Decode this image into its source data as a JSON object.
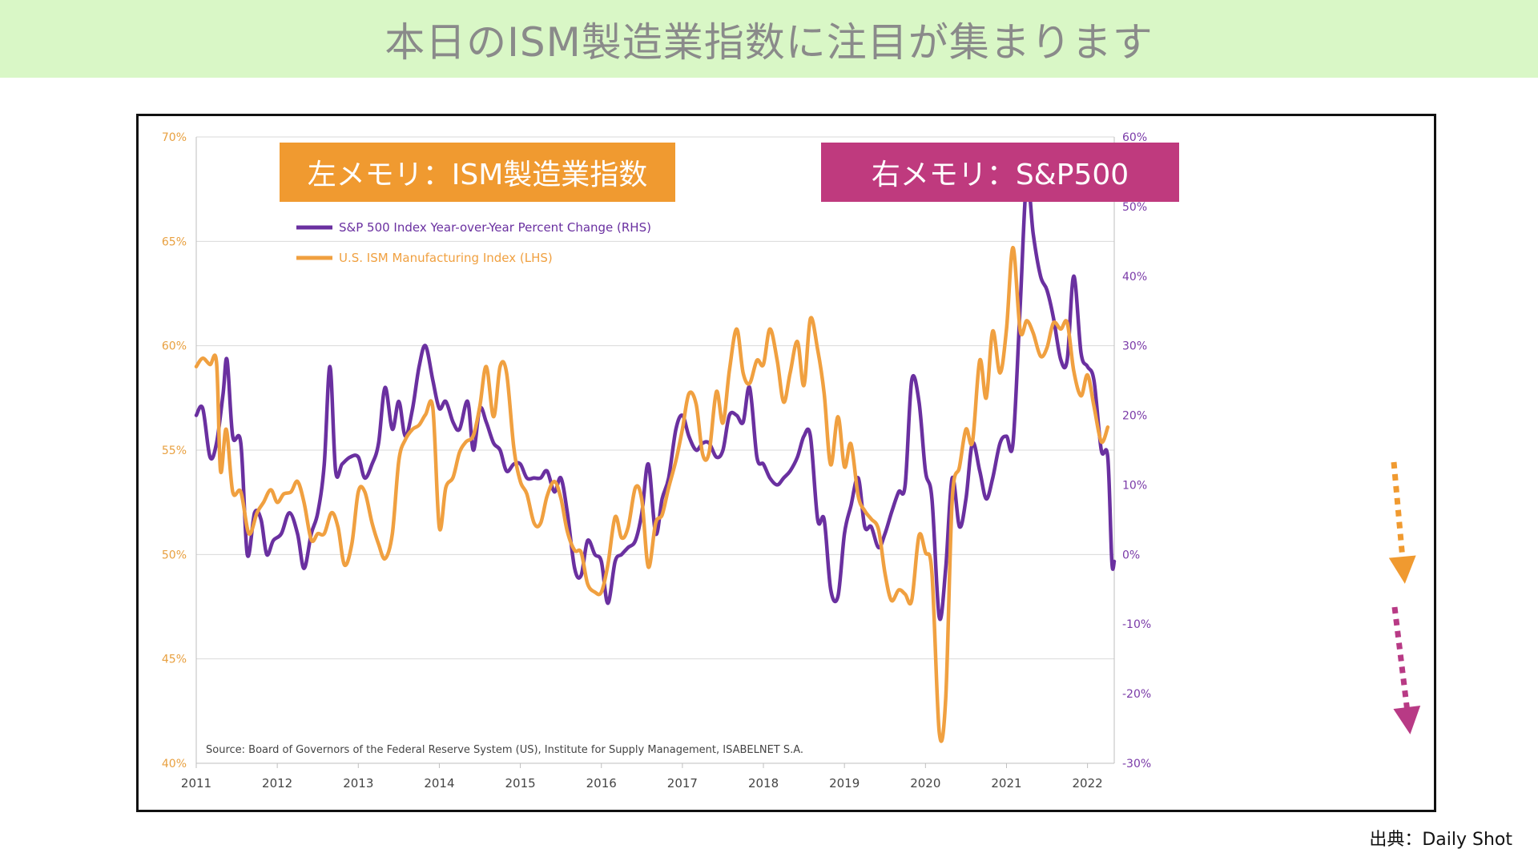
{
  "page": {
    "title": "本日のISM製造業指数に注目が集まります",
    "credit": "出典：Daily Shot"
  },
  "callouts": {
    "left": "左メモリ：ISM製造業指数",
    "right": "右メモリ：S&P500"
  },
  "colors": {
    "banner_bg": "#d9f7c6",
    "ism": "#f0a040",
    "sp500": "#6a30a0",
    "left_axis": "#e8a040",
    "right_axis": "#7a3aa8",
    "callout_left": "#f09a30",
    "callout_right": "#bf3a7e",
    "arrow_orange": "#f09a30",
    "arrow_magenta": "#b83a85"
  },
  "chart_data": {
    "type": "line",
    "source": "Source: Board of Governors of the Federal Reserve System (US), Institute for Supply Management, ISABELNET S.A.",
    "legend": [
      "S&P 500 Index Year-over-Year Percent Change (RHS)",
      "U.S. ISM Manufacturing Index (LHS)"
    ],
    "x_ticks": [
      "2011",
      "2012",
      "2013",
      "2014",
      "2015",
      "2016",
      "2017",
      "2018",
      "2019",
      "2020",
      "2021",
      "2022"
    ],
    "xlim": [
      2011.0,
      2022.33
    ],
    "y_left": {
      "ticks": [
        "70%",
        "65%",
        "60%",
        "55%",
        "50%",
        "45%",
        "40%"
      ],
      "ylim": [
        40,
        70
      ]
    },
    "y_right": {
      "ticks": [
        "60%",
        "50%",
        "40%",
        "30%",
        "20%",
        "10%",
        "0%",
        "-10%",
        "-20%",
        "-30%"
      ],
      "ylim": [
        -30,
        60
      ]
    },
    "grid": true,
    "legend_placement": "top-left",
    "series": [
      {
        "name": "S&P 500 Index Year-over-Year Percent Change (RHS)",
        "axis": "right",
        "points": [
          [
            2011.0,
            20
          ],
          [
            2011.08,
            21
          ],
          [
            2011.17,
            14
          ],
          [
            2011.25,
            16
          ],
          [
            2011.33,
            23
          ],
          [
            2011.38,
            28
          ],
          [
            2011.45,
            17
          ],
          [
            2011.55,
            16
          ],
          [
            2011.63,
            0
          ],
          [
            2011.72,
            6
          ],
          [
            2011.8,
            5
          ],
          [
            2011.87,
            0
          ],
          [
            2011.95,
            2
          ],
          [
            2012.05,
            3
          ],
          [
            2012.15,
            6
          ],
          [
            2012.25,
            3
          ],
          [
            2012.33,
            -2
          ],
          [
            2012.42,
            3
          ],
          [
            2012.5,
            6
          ],
          [
            2012.58,
            13
          ],
          [
            2012.65,
            27
          ],
          [
            2012.72,
            12
          ],
          [
            2012.8,
            13
          ],
          [
            2012.9,
            14
          ],
          [
            2013.0,
            14
          ],
          [
            2013.08,
            11
          ],
          [
            2013.17,
            13
          ],
          [
            2013.25,
            16
          ],
          [
            2013.33,
            24
          ],
          [
            2013.42,
            18
          ],
          [
            2013.5,
            22
          ],
          [
            2013.58,
            17
          ],
          [
            2013.67,
            21
          ],
          [
            2013.75,
            27
          ],
          [
            2013.83,
            30
          ],
          [
            2013.92,
            25
          ],
          [
            2014.0,
            21
          ],
          [
            2014.08,
            22
          ],
          [
            2014.17,
            19
          ],
          [
            2014.25,
            18
          ],
          [
            2014.35,
            22
          ],
          [
            2014.42,
            15
          ],
          [
            2014.5,
            21
          ],
          [
            2014.58,
            19
          ],
          [
            2014.67,
            16
          ],
          [
            2014.75,
            15
          ],
          [
            2014.83,
            12
          ],
          [
            2014.92,
            13
          ],
          [
            2015.0,
            13
          ],
          [
            2015.08,
            11
          ],
          [
            2015.17,
            11
          ],
          [
            2015.25,
            11
          ],
          [
            2015.33,
            12
          ],
          [
            2015.42,
            9
          ],
          [
            2015.5,
            11
          ],
          [
            2015.58,
            6
          ],
          [
            2015.67,
            -2
          ],
          [
            2015.75,
            -3
          ],
          [
            2015.83,
            2
          ],
          [
            2015.92,
            0
          ],
          [
            2016.0,
            -1
          ],
          [
            2016.08,
            -7
          ],
          [
            2016.17,
            -1
          ],
          [
            2016.25,
            0
          ],
          [
            2016.33,
            1
          ],
          [
            2016.42,
            2
          ],
          [
            2016.5,
            6
          ],
          [
            2016.58,
            13
          ],
          [
            2016.67,
            3
          ],
          [
            2016.75,
            8
          ],
          [
            2016.83,
            11
          ],
          [
            2016.92,
            18
          ],
          [
            2017.0,
            20
          ],
          [
            2017.08,
            17
          ],
          [
            2017.17,
            15
          ],
          [
            2017.25,
            16
          ],
          [
            2017.33,
            16
          ],
          [
            2017.42,
            14
          ],
          [
            2017.5,
            15
          ],
          [
            2017.58,
            20
          ],
          [
            2017.67,
            20
          ],
          [
            2017.75,
            19
          ],
          [
            2017.83,
            24
          ],
          [
            2017.92,
            14
          ],
          [
            2018.0,
            13
          ],
          [
            2018.08,
            11
          ],
          [
            2018.17,
            10
          ],
          [
            2018.25,
            11
          ],
          [
            2018.33,
            12
          ],
          [
            2018.42,
            14
          ],
          [
            2018.5,
            17
          ],
          [
            2018.58,
            17
          ],
          [
            2018.67,
            5
          ],
          [
            2018.75,
            5
          ],
          [
            2018.83,
            -5
          ],
          [
            2018.92,
            -6
          ],
          [
            2019.0,
            3
          ],
          [
            2019.08,
            7
          ],
          [
            2019.17,
            11
          ],
          [
            2019.25,
            4
          ],
          [
            2019.33,
            4
          ],
          [
            2019.42,
            1
          ],
          [
            2019.5,
            3
          ],
          [
            2019.58,
            6
          ],
          [
            2019.67,
            9
          ],
          [
            2019.75,
            10
          ],
          [
            2019.83,
            25
          ],
          [
            2019.92,
            22
          ],
          [
            2020.0,
            12
          ],
          [
            2020.08,
            8
          ],
          [
            2020.17,
            -9
          ],
          [
            2020.25,
            -2
          ],
          [
            2020.33,
            11
          ],
          [
            2020.42,
            4
          ],
          [
            2020.5,
            8
          ],
          [
            2020.58,
            16
          ],
          [
            2020.67,
            12
          ],
          [
            2020.75,
            8
          ],
          [
            2020.83,
            11
          ],
          [
            2020.92,
            16
          ],
          [
            2021.0,
            17
          ],
          [
            2021.08,
            16
          ],
          [
            2021.17,
            36
          ],
          [
            2021.25,
            54
          ],
          [
            2021.33,
            46
          ],
          [
            2021.42,
            40
          ],
          [
            2021.5,
            38
          ],
          [
            2021.58,
            34
          ],
          [
            2021.67,
            28
          ],
          [
            2021.75,
            28
          ],
          [
            2021.83,
            40
          ],
          [
            2021.92,
            29
          ],
          [
            2022.0,
            27
          ],
          [
            2022.08,
            25
          ],
          [
            2022.17,
            15
          ],
          [
            2022.25,
            14
          ],
          [
            2022.3,
            -1
          ],
          [
            2022.33,
            -1
          ]
        ]
      },
      {
        "name": "U.S. ISM Manufacturing Index (LHS)",
        "axis": "left",
        "points": [
          [
            2011.0,
            59
          ],
          [
            2011.08,
            59.4
          ],
          [
            2011.17,
            59.1
          ],
          [
            2011.25,
            59.2
          ],
          [
            2011.3,
            54
          ],
          [
            2011.37,
            56
          ],
          [
            2011.45,
            53
          ],
          [
            2011.55,
            53
          ],
          [
            2011.65,
            51
          ],
          [
            2011.75,
            52
          ],
          [
            2011.83,
            52.5
          ],
          [
            2011.92,
            53.1
          ],
          [
            2012.0,
            52.5
          ],
          [
            2012.08,
            52.9
          ],
          [
            2012.17,
            53
          ],
          [
            2012.25,
            53.5
          ],
          [
            2012.33,
            52.5
          ],
          [
            2012.42,
            50.7
          ],
          [
            2012.5,
            51
          ],
          [
            2012.58,
            51
          ],
          [
            2012.67,
            52
          ],
          [
            2012.75,
            51.3
          ],
          [
            2012.83,
            49.5
          ],
          [
            2012.92,
            50.5
          ],
          [
            2013.0,
            53
          ],
          [
            2013.08,
            53
          ],
          [
            2013.17,
            51.5
          ],
          [
            2013.25,
            50.5
          ],
          [
            2013.33,
            49.8
          ],
          [
            2013.42,
            51
          ],
          [
            2013.5,
            54.5
          ],
          [
            2013.58,
            55.5
          ],
          [
            2013.67,
            56
          ],
          [
            2013.75,
            56.2
          ],
          [
            2013.83,
            56.7
          ],
          [
            2013.92,
            57
          ],
          [
            2014.0,
            51.3
          ],
          [
            2014.08,
            53.2
          ],
          [
            2014.17,
            53.7
          ],
          [
            2014.25,
            54.9
          ],
          [
            2014.33,
            55.4
          ],
          [
            2014.42,
            55.7
          ],
          [
            2014.5,
            57.1
          ],
          [
            2014.58,
            59
          ],
          [
            2014.67,
            56.6
          ],
          [
            2014.75,
            59
          ],
          [
            2014.83,
            58.7
          ],
          [
            2014.92,
            55.1
          ],
          [
            2015.0,
            53.5
          ],
          [
            2015.08,
            52.9
          ],
          [
            2015.17,
            51.5
          ],
          [
            2015.25,
            51.5
          ],
          [
            2015.33,
            52.8
          ],
          [
            2015.42,
            53.5
          ],
          [
            2015.5,
            52.7
          ],
          [
            2015.58,
            51.1
          ],
          [
            2015.67,
            50.2
          ],
          [
            2015.75,
            50.1
          ],
          [
            2015.83,
            48.6
          ],
          [
            2015.92,
            48.2
          ],
          [
            2016.0,
            48.2
          ],
          [
            2016.08,
            49.5
          ],
          [
            2016.17,
            51.8
          ],
          [
            2016.25,
            50.8
          ],
          [
            2016.33,
            51.3
          ],
          [
            2016.42,
            53.2
          ],
          [
            2016.5,
            52.6
          ],
          [
            2016.58,
            49.4
          ],
          [
            2016.67,
            51.5
          ],
          [
            2016.75,
            51.9
          ],
          [
            2016.83,
            53.2
          ],
          [
            2016.92,
            54.5
          ],
          [
            2017.0,
            56
          ],
          [
            2017.08,
            57.7
          ],
          [
            2017.17,
            57.2
          ],
          [
            2017.25,
            54.8
          ],
          [
            2017.33,
            54.9
          ],
          [
            2017.42,
            57.8
          ],
          [
            2017.5,
            56.3
          ],
          [
            2017.58,
            58.8
          ],
          [
            2017.67,
            60.8
          ],
          [
            2017.75,
            58.7
          ],
          [
            2017.83,
            58.2
          ],
          [
            2017.92,
            59.3
          ],
          [
            2018.0,
            59.1
          ],
          [
            2018.08,
            60.8
          ],
          [
            2018.17,
            59.3
          ],
          [
            2018.25,
            57.3
          ],
          [
            2018.33,
            58.7
          ],
          [
            2018.42,
            60.2
          ],
          [
            2018.5,
            58.1
          ],
          [
            2018.58,
            61.3
          ],
          [
            2018.67,
            59.8
          ],
          [
            2018.75,
            57.7
          ],
          [
            2018.83,
            54.3
          ],
          [
            2018.92,
            56.6
          ],
          [
            2019.0,
            54.2
          ],
          [
            2019.08,
            55.3
          ],
          [
            2019.17,
            52.8
          ],
          [
            2019.25,
            52.1
          ],
          [
            2019.33,
            51.7
          ],
          [
            2019.42,
            51.2
          ],
          [
            2019.5,
            49.1
          ],
          [
            2019.58,
            47.8
          ],
          [
            2019.67,
            48.3
          ],
          [
            2019.75,
            48.1
          ],
          [
            2019.83,
            47.8
          ],
          [
            2019.92,
            50.9
          ],
          [
            2020.0,
            50.1
          ],
          [
            2020.08,
            49.1
          ],
          [
            2020.17,
            41.5
          ],
          [
            2020.25,
            43.1
          ],
          [
            2020.33,
            52.6
          ],
          [
            2020.42,
            54.2
          ],
          [
            2020.5,
            56
          ],
          [
            2020.58,
            55.4
          ],
          [
            2020.67,
            59.3
          ],
          [
            2020.75,
            57.5
          ],
          [
            2020.83,
            60.7
          ],
          [
            2020.92,
            58.7
          ],
          [
            2021.0,
            60.8
          ],
          [
            2021.08,
            64.7
          ],
          [
            2021.17,
            60.7
          ],
          [
            2021.25,
            61.2
          ],
          [
            2021.33,
            60.6
          ],
          [
            2021.42,
            59.5
          ],
          [
            2021.5,
            59.9
          ],
          [
            2021.58,
            61.1
          ],
          [
            2021.67,
            60.8
          ],
          [
            2021.75,
            61.1
          ],
          [
            2021.83,
            58.8
          ],
          [
            2021.92,
            57.6
          ],
          [
            2022.0,
            58.6
          ],
          [
            2022.08,
            57.1
          ],
          [
            2022.17,
            55.4
          ],
          [
            2022.25,
            56.1
          ]
        ]
      }
    ]
  }
}
